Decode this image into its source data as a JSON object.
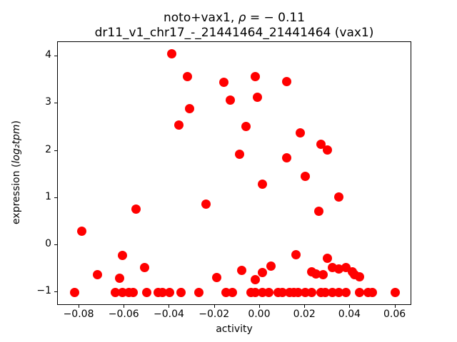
{
  "title": {
    "line1_pre": "noto+vax1, ",
    "line1_rho": "ρ",
    "line1_post": " = − 0.11",
    "line2": "dr11_v1_chr17_-_21441464_21441464 (vax1)"
  },
  "ylabel_parts": {
    "pre": "expression (",
    "math": "log₂tpm",
    "post": ")"
  },
  "chart_data": {
    "type": "scatter",
    "title": "noto+vax1, ρ = − 0.11",
    "subtitle": "dr11_v1_chr17_-_21441464_21441464 (vax1)",
    "xlabel": "activity",
    "ylabel": "expression (log₂tpm)",
    "marker_color": "#ff0000",
    "grid": false,
    "legend": null,
    "xlim": [
      -0.0895,
      0.0674
    ],
    "ylim": [
      -1.275,
      4.314
    ],
    "x_ticks": [
      -0.08,
      -0.06,
      -0.04,
      -0.02,
      0,
      0.02,
      0.04,
      0.06
    ],
    "x_tick_labels": [
      "−0.08",
      "−0.06",
      "−0.04",
      "−0.02",
      "0.00",
      "0.02",
      "0.04",
      "0.06"
    ],
    "y_ticks": [
      -1,
      0,
      1,
      2,
      3,
      4
    ],
    "y_tick_labels": [
      "−1",
      "0",
      "1",
      "2",
      "3",
      "4"
    ],
    "points": [
      [
        -0.039,
        4.05
      ],
      [
        -0.002,
        3.58
      ],
      [
        -0.032,
        3.57
      ],
      [
        0.012,
        3.47
      ],
      [
        -0.016,
        3.45
      ],
      [
        -0.001,
        3.13
      ],
      [
        -0.013,
        3.07
      ],
      [
        -0.031,
        2.9
      ],
      [
        -0.036,
        2.55
      ],
      [
        -0.006,
        2.52
      ],
      [
        0.018,
        2.38
      ],
      [
        0.027,
        2.14
      ],
      [
        0.03,
        2.02
      ],
      [
        -0.009,
        1.92
      ],
      [
        0.012,
        1.85
      ],
      [
        0.02,
        1.46
      ],
      [
        0.001,
        1.3
      ],
      [
        0.035,
        1.02
      ],
      [
        -0.024,
        0.87
      ],
      [
        -0.055,
        0.76
      ],
      [
        0.026,
        0.72
      ],
      [
        -0.079,
        0.3
      ],
      [
        0.016,
        -0.21
      ],
      [
        -0.061,
        -0.22
      ],
      [
        0.03,
        -0.28
      ],
      [
        0.005,
        -0.45
      ],
      [
        -0.051,
        -0.48
      ],
      [
        0.032,
        -0.48
      ],
      [
        0.038,
        -0.48
      ],
      [
        0.035,
        -0.51
      ],
      [
        -0.008,
        -0.53
      ],
      [
        0.023,
        -0.56
      ],
      [
        0.041,
        -0.56
      ],
      [
        0.001,
        -0.58
      ],
      [
        0.025,
        -0.61
      ],
      [
        -0.072,
        -0.62
      ],
      [
        0.028,
        -0.62
      ],
      [
        0.042,
        -0.62
      ],
      [
        0.044,
        -0.67
      ],
      [
        -0.019,
        -0.68
      ],
      [
        -0.062,
        -0.7
      ],
      [
        -0.002,
        -0.73
      ],
      [
        -0.082,
        -1
      ],
      [
        -0.064,
        -1
      ],
      [
        -0.061,
        -1
      ],
      [
        -0.058,
        -1
      ],
      [
        -0.056,
        -1
      ],
      [
        -0.05,
        -1
      ],
      [
        -0.045,
        -1
      ],
      [
        -0.043,
        -1
      ],
      [
        -0.04,
        -1
      ],
      [
        -0.035,
        -1
      ],
      [
        -0.027,
        -1
      ],
      [
        -0.015,
        -1
      ],
      [
        -0.012,
        -1
      ],
      [
        -0.004,
        -1
      ],
      [
        -0.002,
        -1
      ],
      [
        0.001,
        -1
      ],
      [
        0.004,
        -1
      ],
      [
        0.008,
        -1
      ],
      [
        0.01,
        -1
      ],
      [
        0.013,
        -1
      ],
      [
        0.015,
        -1
      ],
      [
        0.017,
        -1
      ],
      [
        0.02,
        -1
      ],
      [
        0.023,
        -1
      ],
      [
        0.027,
        -1
      ],
      [
        0.029,
        -1
      ],
      [
        0.032,
        -1
      ],
      [
        0.035,
        -1
      ],
      [
        0.038,
        -1
      ],
      [
        0.044,
        -1
      ],
      [
        0.048,
        -1
      ],
      [
        0.05,
        -1
      ],
      [
        0.06,
        -1
      ]
    ]
  }
}
